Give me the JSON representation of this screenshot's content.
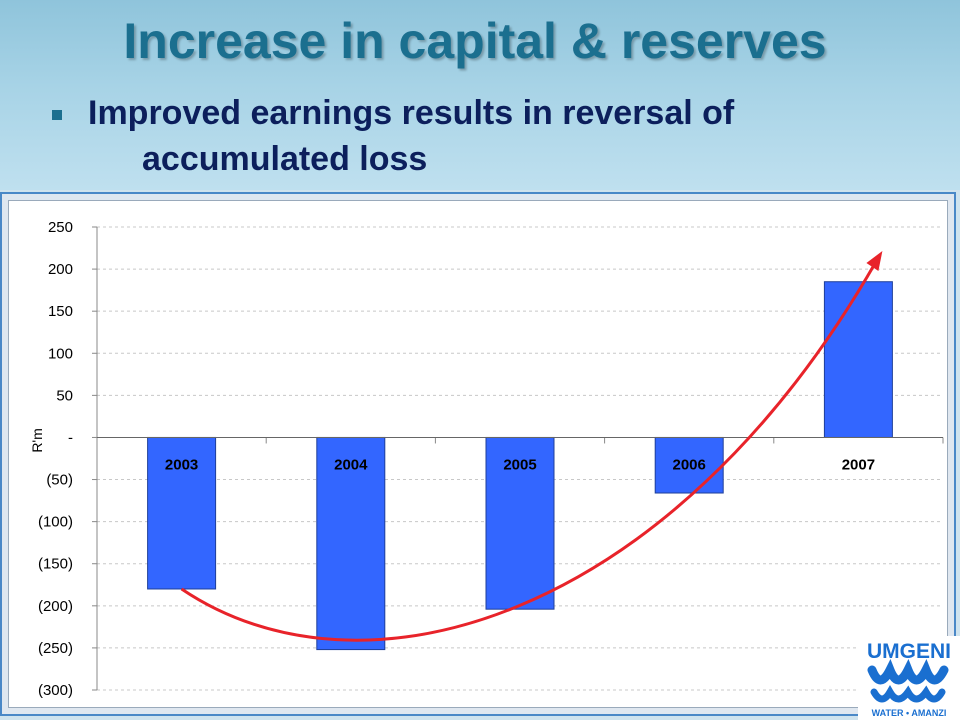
{
  "slide": {
    "title": "Increase in capital & reserves",
    "bullet_line1": "Improved earnings results in reversal of",
    "bullet_line2": "accumulated loss"
  },
  "logo": {
    "name": "UMGENI",
    "tagline": "WATER • AMANZI",
    "color": "#1a6fd0"
  },
  "colors": {
    "bar": "#3366ff",
    "bar_border": "#1f3f99",
    "arrow": "#e8232a",
    "grid": "#c8c8c8"
  },
  "chart_data": {
    "type": "bar",
    "categories": [
      "2003",
      "2004",
      "2005",
      "2006",
      "2007"
    ],
    "values": [
      -180,
      -252,
      -204,
      -66,
      185
    ],
    "ylabel": "R'm",
    "ylim": [
      -300,
      250
    ],
    "yticks": [
      250,
      200,
      150,
      100,
      50,
      0,
      -50,
      -100,
      -150,
      -200,
      -250,
      -300
    ],
    "ytick_labels": [
      "250",
      "200",
      "150",
      "100",
      "50",
      "-",
      "(50)",
      "(100)",
      "(150)",
      "(200)",
      "(250)",
      "(300)"
    ],
    "grid": true,
    "annotation": "curved red trend arrow rising from 2003 through 2007"
  }
}
